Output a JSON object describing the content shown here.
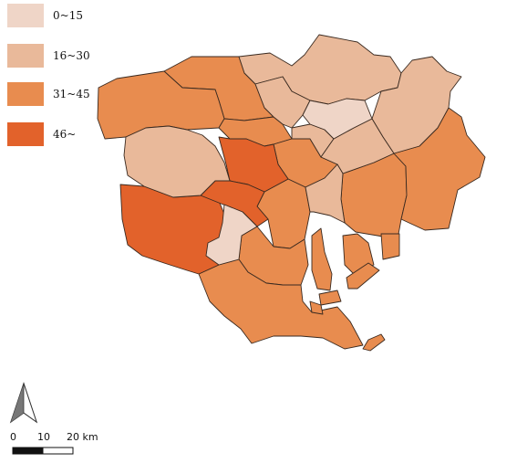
{
  "legend": {
    "items": [
      {
        "label": "0~15",
        "color": "#efd5c7"
      },
      {
        "label": "16~30",
        "color": "#e9b99a"
      },
      {
        "label": "31~45",
        "color": "#e88c4f"
      },
      {
        "label": "46~",
        "color": "#e2622b"
      }
    ]
  },
  "scale_bar": {
    "tick_0": "0",
    "tick_10": "10",
    "tick_20": "20 km"
  },
  "north_arrow": {
    "icon": "north-arrow-icon"
  }
}
